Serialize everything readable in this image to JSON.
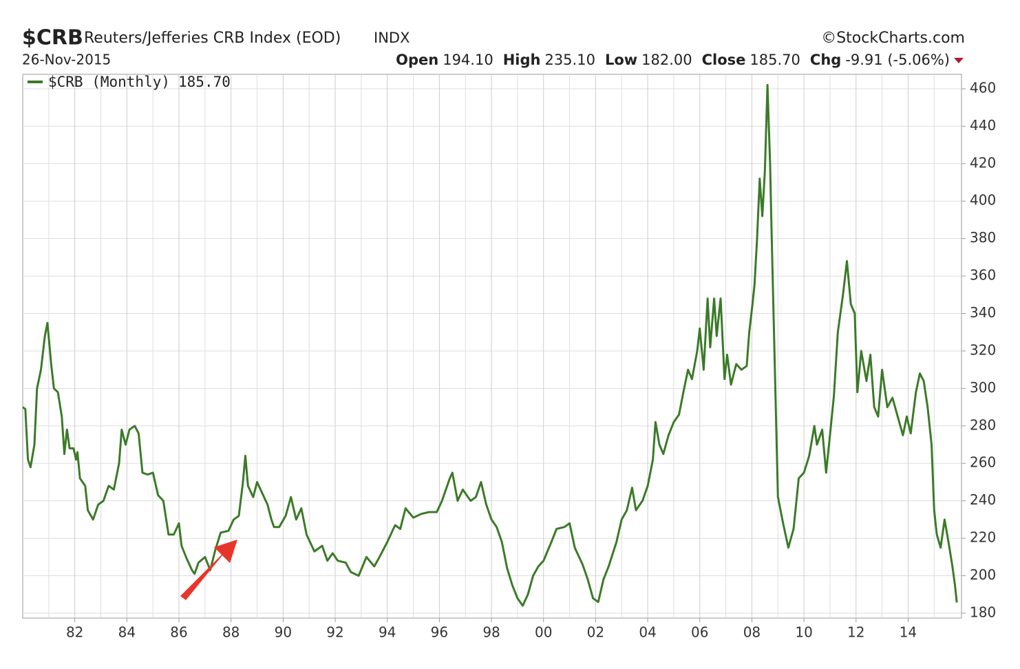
{
  "header": {
    "symbol": "$CRB",
    "name": "Reuters/Jefferies CRB Index (EOD)",
    "exchange": "INDX",
    "source": "©StockCharts.com",
    "date": "26-Nov-2015",
    "stats": [
      {
        "label": "Open",
        "value": "194.10"
      },
      {
        "label": "High",
        "value": "235.10"
      },
      {
        "label": "Low",
        "value": "182.00"
      },
      {
        "label": "Close",
        "value": "185.70"
      },
      {
        "label": "Chg",
        "value": "-9.91 (-5.06%)"
      }
    ]
  },
  "chart_data": {
    "type": "line",
    "x": [
      1980.0,
      1980.1,
      1980.2,
      1980.3,
      1980.45,
      1980.55,
      1980.7,
      1980.85,
      1980.95,
      1981.1,
      1981.2,
      1981.35,
      1981.5,
      1981.6,
      1981.7,
      1981.8,
      1981.95,
      1982.05,
      1982.1,
      1982.2,
      1982.4,
      1982.5,
      1982.7,
      1982.9,
      1983.1,
      1983.3,
      1983.5,
      1983.7,
      1983.8,
      1983.95,
      1984.1,
      1984.3,
      1984.45,
      1984.6,
      1984.8,
      1985.0,
      1985.2,
      1985.4,
      1985.6,
      1985.8,
      1986.0,
      1986.1,
      1986.3,
      1986.5,
      1986.6,
      1986.75,
      1987.0,
      1987.2,
      1987.4,
      1987.6,
      1987.9,
      1988.1,
      1988.3,
      1988.45,
      1988.55,
      1988.65,
      1988.85,
      1989.0,
      1989.2,
      1989.4,
      1989.55,
      1989.65,
      1989.85,
      1990.1,
      1990.3,
      1990.5,
      1990.7,
      1990.9,
      1991.2,
      1991.5,
      1991.7,
      1991.9,
      1992.1,
      1992.4,
      1992.6,
      1992.9,
      1993.2,
      1993.5,
      1993.7,
      1994.0,
      1994.3,
      1994.5,
      1994.7,
      1995.0,
      1995.3,
      1995.6,
      1995.9,
      1996.1,
      1996.4,
      1996.5,
      1996.7,
      1996.9,
      1997.2,
      1997.4,
      1997.6,
      1997.8,
      1998.0,
      1998.2,
      1998.4,
      1998.6,
      1998.8,
      1999.0,
      1999.2,
      1999.4,
      1999.6,
      1999.8,
      2000.0,
      2000.3,
      2000.5,
      2000.8,
      2001.0,
      2001.2,
      2001.5,
      2001.7,
      2001.9,
      2002.1,
      2002.3,
      2002.5,
      2002.8,
      2003.0,
      2003.2,
      2003.4,
      2003.55,
      2003.8,
      2004.0,
      2004.2,
      2004.3,
      2004.45,
      2004.6,
      2004.8,
      2005.0,
      2005.2,
      2005.4,
      2005.55,
      2005.7,
      2005.9,
      2006.0,
      2006.15,
      2006.3,
      2006.4,
      2006.55,
      2006.65,
      2006.8,
      2006.95,
      2007.05,
      2007.2,
      2007.4,
      2007.6,
      2007.8,
      2007.9,
      2008.0,
      2008.1,
      2008.2,
      2008.3,
      2008.4,
      2008.5,
      2008.6,
      2008.7,
      2008.75,
      2008.9,
      2009.0,
      2009.2,
      2009.4,
      2009.6,
      2009.8,
      2010.0,
      2010.2,
      2010.4,
      2010.5,
      2010.7,
      2010.85,
      2011.0,
      2011.15,
      2011.3,
      2011.5,
      2011.65,
      2011.8,
      2011.95,
      2012.05,
      2012.2,
      2012.4,
      2012.55,
      2012.7,
      2012.85,
      2013.0,
      2013.2,
      2013.4,
      2013.6,
      2013.8,
      2013.95,
      2014.1,
      2014.3,
      2014.45,
      2014.6,
      2014.75,
      2014.9,
      2015.0,
      2015.1,
      2015.25,
      2015.4,
      2015.55,
      2015.7,
      2015.8,
      2015.87
    ],
    "series": [
      {
        "name": "$CRB (Monthly)",
        "color": "#3b7a28",
        "last_label": "185.70",
        "values": [
          290,
          289,
          262,
          258,
          270,
          300,
          310,
          328,
          335,
          312,
          300,
          298,
          285,
          265,
          278,
          268,
          268,
          262,
          266,
          252,
          248,
          235,
          230,
          238,
          240,
          248,
          246,
          260,
          278,
          270,
          278,
          280,
          276,
          255,
          254,
          255,
          243,
          240,
          222,
          222,
          228,
          216,
          209,
          203,
          201,
          207,
          210,
          203,
          214,
          223,
          224,
          230,
          232,
          249,
          264,
          248,
          242,
          250,
          244,
          238,
          230,
          226,
          226,
          232,
          242,
          230,
          236,
          222,
          213,
          216,
          208,
          212,
          208,
          207,
          202,
          200,
          210,
          205,
          210,
          218,
          227,
          225,
          236,
          231,
          233,
          234,
          234,
          240,
          252,
          255,
          240,
          246,
          240,
          242,
          250,
          238,
          230,
          226,
          218,
          204,
          195,
          188,
          184,
          190,
          200,
          205,
          208,
          218,
          225,
          226,
          228,
          215,
          206,
          198,
          188,
          186,
          198,
          205,
          218,
          230,
          235,
          247,
          235,
          240,
          248,
          262,
          282,
          270,
          265,
          275,
          282,
          286,
          300,
          310,
          305,
          320,
          332,
          310,
          348,
          322,
          348,
          328,
          348,
          305,
          318,
          302,
          313,
          310,
          312,
          330,
          342,
          355,
          380,
          412,
          392,
          416,
          462,
          420,
          388,
          300,
          242,
          228,
          215,
          225,
          252,
          255,
          264,
          280,
          270,
          278,
          255,
          275,
          296,
          330,
          350,
          368,
          345,
          340,
          298,
          320,
          304,
          318,
          290,
          285,
          310,
          290,
          295,
          285,
          275,
          285,
          276,
          298,
          308,
          304,
          290,
          270,
          235,
          222,
          215,
          230,
          218,
          205,
          195,
          185.7
        ]
      }
    ],
    "xlim": [
      1980,
      2016.05
    ],
    "ylim": [
      177.4,
      467.7
    ],
    "xticks": [
      {
        "value": 1982,
        "label": "82"
      },
      {
        "value": 1984,
        "label": "84"
      },
      {
        "value": 1986,
        "label": "86"
      },
      {
        "value": 1988,
        "label": "88"
      },
      {
        "value": 1990,
        "label": "90"
      },
      {
        "value": 1992,
        "label": "92"
      },
      {
        "value": 1994,
        "label": "94"
      },
      {
        "value": 1996,
        "label": "96"
      },
      {
        "value": 1998,
        "label": "98"
      },
      {
        "value": 2000,
        "label": "00"
      },
      {
        "value": 2002,
        "label": "02"
      },
      {
        "value": 2004,
        "label": "04"
      },
      {
        "value": 2006,
        "label": "06"
      },
      {
        "value": 2008,
        "label": "08"
      },
      {
        "value": 2010,
        "label": "10"
      },
      {
        "value": 2012,
        "label": "12"
      },
      {
        "value": 2014,
        "label": "14"
      }
    ],
    "yticks": [
      180,
      200,
      220,
      240,
      260,
      280,
      300,
      320,
      340,
      360,
      380,
      400,
      420,
      440,
      460
    ],
    "grid": true,
    "legend": "upper left"
  }
}
